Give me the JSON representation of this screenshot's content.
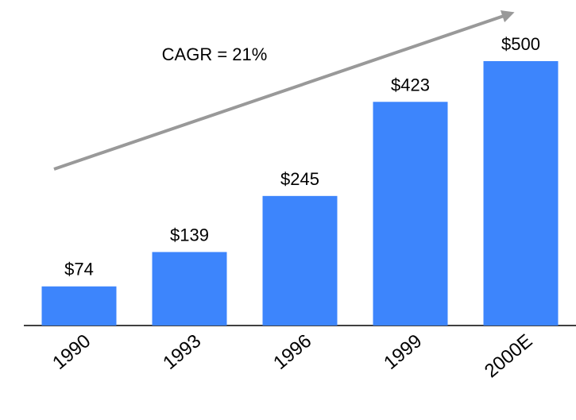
{
  "chart_data": {
    "type": "bar",
    "annotation": "CAGR = 21%",
    "categories": [
      "1990",
      "1993",
      "1996",
      "1999",
      "2000E"
    ],
    "values": [
      74,
      139,
      245,
      423,
      500
    ],
    "value_labels": [
      "$74",
      "$139",
      "$245",
      "$423",
      "$500"
    ],
    "color": "#3d85fc"
  }
}
